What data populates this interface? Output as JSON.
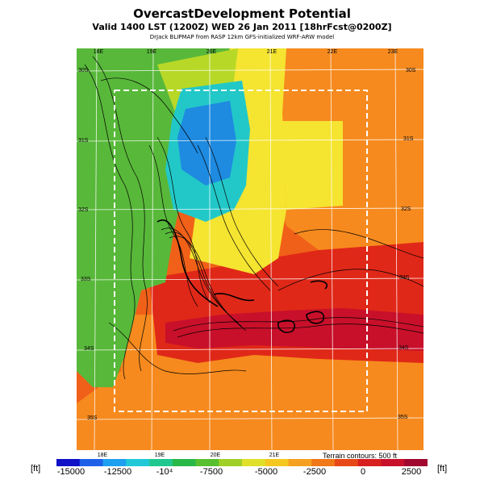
{
  "header": {
    "title": "OvercastDevelopment Potential",
    "subtitle": "Valid 1400 LST (1200Z) WED 26 Jan 2011 [18hrFcst@0200Z]",
    "credit": "DrJack BLIPMAP from RASP 12km GFS-initialized WRF-ARW model"
  },
  "map": {
    "lon_labels_top": [
      "18E",
      "19E",
      "20E",
      "21E",
      "22E",
      "23E"
    ],
    "lon_labels_bottom": [
      "18E",
      "19E",
      "20E",
      "21E"
    ],
    "lat_labels_left": [
      "30S",
      "31S",
      "32S",
      "33S",
      "34S",
      "35S"
    ],
    "lat_labels_right": [
      "30S",
      "31S",
      "32S",
      "33S",
      "34S",
      "35S"
    ],
    "terrain_note": "Terrain contours: 500 ft",
    "palette": {
      "ocean": "#f06018",
      "dark_red": "#c8102a",
      "red": "#e02818",
      "orange": "#f68a1e",
      "yellow": "#f5e430",
      "yellow_green": "#b8d828",
      "green": "#58b83a",
      "cyan": "#22c8c8",
      "blue": "#1e8ae0"
    }
  },
  "colorbar": {
    "unit_left": "[ft]",
    "unit_right": "[ft]",
    "ticks": [
      "-15000",
      "-12500",
      "-10⁴",
      "-7500",
      "-5000",
      "-2500",
      "0",
      "2500"
    ],
    "colors": [
      "#1010c8",
      "#1e60e8",
      "#1ea0f0",
      "#20c8d8",
      "#20c890",
      "#28b848",
      "#58c030",
      "#a0d028",
      "#e0e028",
      "#f5c820",
      "#f5a020",
      "#f07818",
      "#e84818",
      "#d82020",
      "#c8102a",
      "#a00830"
    ]
  }
}
